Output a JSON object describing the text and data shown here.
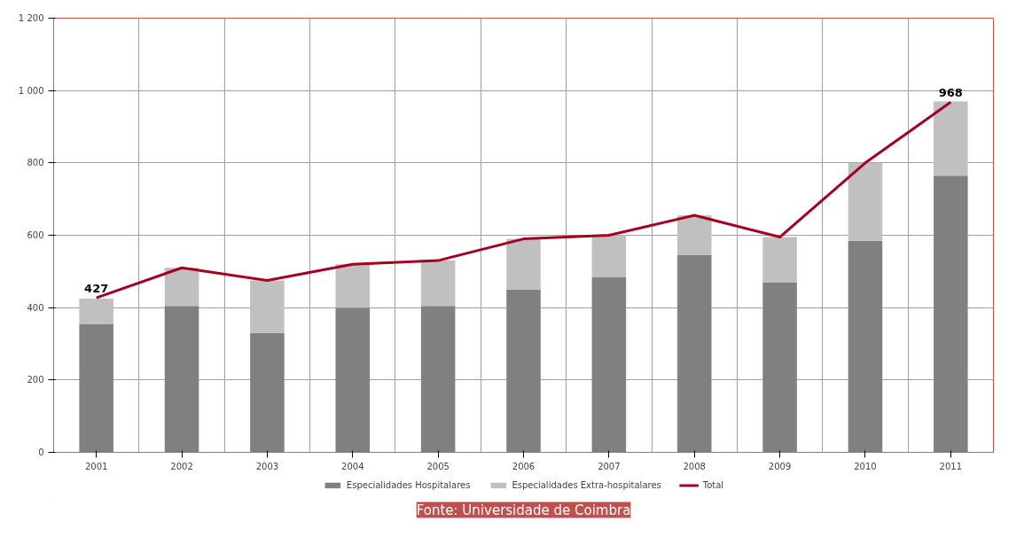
{
  "chart_data": {
    "type": "bar",
    "stacked": true,
    "categories": [
      "2001",
      "2002",
      "2003",
      "2004",
      "2005",
      "2006",
      "2007",
      "2008",
      "2009",
      "2010",
      "2011"
    ],
    "series": [
      {
        "name": "Especialidades Hospitalares",
        "color": "#808080",
        "values": [
          355,
          405,
          330,
          400,
          405,
          450,
          485,
          545,
          470,
          585,
          765
        ]
      },
      {
        "name": "Especialidades Extra-hospitalares",
        "color": "#c0c0c0",
        "values": [
          70,
          105,
          145,
          120,
          125,
          140,
          115,
          110,
          125,
          215,
          205
        ]
      },
      {
        "name": "Total",
        "type": "line",
        "color": "#a50021",
        "values": [
          427,
          510,
          475,
          520,
          530,
          590,
          600,
          655,
          595,
          800,
          968
        ],
        "value_labels": [
          "427",
          null,
          null,
          null,
          null,
          null,
          null,
          null,
          null,
          null,
          "968"
        ]
      }
    ],
    "ylim": [
      0,
      1200
    ],
    "yticks": [
      0,
      200,
      400,
      600,
      800,
      {
        "value": 1000,
        "label": "1 000"
      },
      {
        "value": 1200,
        "label": "1 200"
      }
    ],
    "grid": true,
    "legend": "bottom",
    "annotations": [
      "Fonte: Universidade de Coimbra"
    ]
  }
}
